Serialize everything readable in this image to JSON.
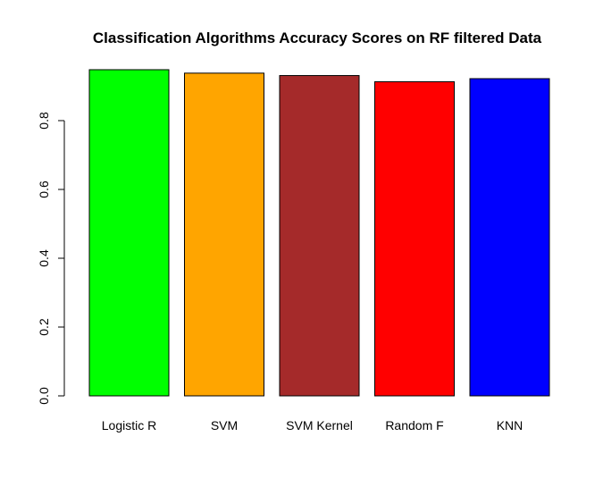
{
  "chart_data": {
    "type": "bar",
    "title": "Classification Algorithms Accuracy Scores on RF filtered Data",
    "xlabel": "",
    "ylabel": "",
    "categories": [
      "Logistic R",
      "SVM",
      "SVM Kernel",
      "Random F",
      "KNN"
    ],
    "values": [
      0.948,
      0.938,
      0.931,
      0.913,
      0.922
    ],
    "colors": [
      "#00ff00",
      "#ffa500",
      "#a52a2a",
      "#ff0000",
      "#0000ff"
    ],
    "ylim": [
      0,
      0.948
    ],
    "yticks": [
      0,
      0.2,
      0.4,
      0.6,
      0.8
    ],
    "ytick_labels": [
      "0.0",
      "0.2",
      "0.4",
      "0.6",
      "0.8"
    ],
    "grid": false,
    "legend": "none"
  }
}
